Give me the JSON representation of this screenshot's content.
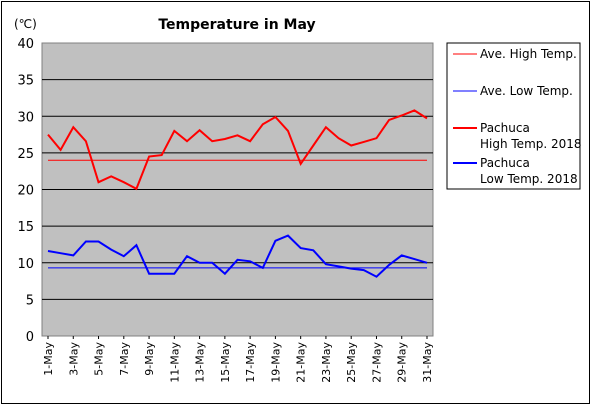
{
  "chart_data": {
    "type": "line",
    "title": "Temperature in May",
    "unit_label": "(℃)",
    "xlabel": "",
    "ylabel": "",
    "ylim": [
      0,
      40
    ],
    "yticks": [
      0,
      5,
      10,
      15,
      20,
      25,
      30,
      35,
      40
    ],
    "grid": "horizontal",
    "legend_position": "right",
    "categories": [
      "1-May",
      "2-May",
      "3-May",
      "4-May",
      "5-May",
      "6-May",
      "7-May",
      "8-May",
      "9-May",
      "10-May",
      "11-May",
      "12-May",
      "13-May",
      "14-May",
      "15-May",
      "16-May",
      "17-May",
      "18-May",
      "19-May",
      "20-May",
      "21-May",
      "22-May",
      "23-May",
      "24-May",
      "25-May",
      "26-May",
      "27-May",
      "28-May",
      "29-May",
      "30-May",
      "31-May"
    ],
    "xtick_labels": [
      "1-May",
      "3-May",
      "5-May",
      "7-May",
      "9-May",
      "11-May",
      "13-May",
      "15-May",
      "17-May",
      "19-May",
      "21-May",
      "23-May",
      "25-May",
      "27-May",
      "29-May",
      "31-May"
    ],
    "series": [
      {
        "name": "Ave. High Temp.",
        "color": "#ff0000",
        "width": 1,
        "values": [
          24,
          24,
          24,
          24,
          24,
          24,
          24,
          24,
          24,
          24,
          24,
          24,
          24,
          24,
          24,
          24,
          24,
          24,
          24,
          24,
          24,
          24,
          24,
          24,
          24,
          24,
          24,
          24,
          24,
          24,
          24
        ]
      },
      {
        "name": "Ave. Low Temp.",
        "color": "#0000ff",
        "width": 1,
        "values": [
          9.3,
          9.3,
          9.3,
          9.3,
          9.3,
          9.3,
          9.3,
          9.3,
          9.3,
          9.3,
          9.3,
          9.3,
          9.3,
          9.3,
          9.3,
          9.3,
          9.3,
          9.3,
          9.3,
          9.3,
          9.3,
          9.3,
          9.3,
          9.3,
          9.3,
          9.3,
          9.3,
          9.3,
          9.3,
          9.3,
          9.3
        ]
      },
      {
        "name": "Pachuca High Temp. 2018",
        "legend_lines": [
          "Pachuca",
          "High Temp. 2018"
        ],
        "color": "#ff0000",
        "width": 2,
        "values": [
          27.5,
          25.4,
          28.5,
          26.6,
          21.0,
          21.8,
          21.0,
          20.1,
          24.5,
          24.7,
          28.0,
          26.6,
          28.1,
          26.6,
          26.9,
          27.4,
          26.6,
          28.9,
          29.9,
          28.0,
          23.5,
          26.0,
          28.5,
          27.0,
          26.0,
          26.5,
          27.0,
          29.5,
          30.1,
          30.8,
          29.7
        ]
      },
      {
        "name": "Pachuca Low Temp. 2018",
        "legend_lines": [
          "Pachuca",
          "Low Temp. 2018"
        ],
        "color": "#0000ff",
        "width": 2,
        "values": [
          11.6,
          11.3,
          11.0,
          12.9,
          12.9,
          11.8,
          10.9,
          12.4,
          8.5,
          8.5,
          8.5,
          10.9,
          10.0,
          10.0,
          8.5,
          10.4,
          10.2,
          9.3,
          13.0,
          13.7,
          12.0,
          11.7,
          9.8,
          9.5,
          9.2,
          9.0,
          8.1,
          9.7,
          11.0,
          10.5,
          10.0
        ]
      }
    ]
  }
}
